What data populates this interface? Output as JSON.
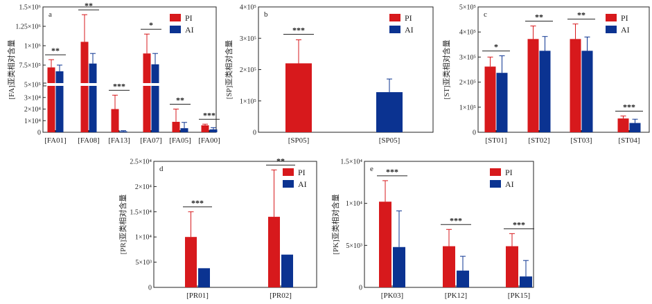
{
  "colors": {
    "pi": "#d7191c",
    "ai": "#0b3391"
  },
  "legend": {
    "pi": "PI",
    "ai": "AI"
  },
  "chart_data": [
    {
      "id": "a",
      "type": "bar",
      "panel_label": "a",
      "ylabel": "[FA]亚类相对含量",
      "y_broken_axis": true,
      "y_lower_range": [
        0,
        40000
      ],
      "y_upper_range": [
        500000,
        1500000
      ],
      "y_ticks": [
        "0",
        "1×10⁴",
        "2×10⁴",
        "3×10⁴",
        "5×10⁵",
        "7.5×10⁵",
        "1×10⁶",
        "1.25×10⁶",
        "1.5×10⁶"
      ],
      "categories": [
        "[FA01]",
        "[FA08]",
        "[FA13]",
        "[FA07]",
        "[FA05]",
        "[FA00]"
      ],
      "series": [
        {
          "name": "PI",
          "values": [
            720000,
            1050000,
            20000,
            900000,
            9000,
            6000
          ],
          "errors": [
            100000,
            350000,
            12000,
            250000,
            11000,
            1000
          ]
        },
        {
          "name": "AI",
          "values": [
            670000,
            770000,
            800,
            760000,
            3500,
            2500
          ],
          "errors": [
            80000,
            130000,
            600,
            140000,
            5000,
            1500
          ]
        }
      ],
      "significance": [
        "**",
        "**",
        "***",
        "*",
        "**",
        "***"
      ]
    },
    {
      "id": "b",
      "type": "bar",
      "panel_label": "b",
      "ylabel": "[SP]亚类相对含量",
      "ylim": [
        0,
        400000
      ],
      "y_ticks": [
        "0",
        "1×10⁵",
        "2×10⁵",
        "3×10⁵",
        "4×10⁵"
      ],
      "categories": [
        "[SP05]",
        "[SP05]"
      ],
      "series": [
        {
          "name": "PI",
          "values": [
            220000,
            null
          ],
          "errors": [
            75000,
            null
          ]
        },
        {
          "name": "AI",
          "values": [
            null,
            128000
          ],
          "errors": [
            null,
            42000
          ]
        }
      ],
      "significance": [
        "***"
      ]
    },
    {
      "id": "c",
      "type": "bar",
      "panel_label": "c",
      "ylabel": "[ST]亚类相对含量",
      "ylim": [
        0,
        500000
      ],
      "y_ticks": [
        "0",
        "1×10⁵",
        "2×10⁵",
        "3×10⁵",
        "4×10⁵",
        "5×10⁵"
      ],
      "categories": [
        "[ST01]",
        "[ST02]",
        "[ST03]",
        "[ST04]"
      ],
      "series": [
        {
          "name": "PI",
          "values": [
            262000,
            372000,
            372000,
            55000
          ],
          "errors": [
            38000,
            52000,
            60000,
            10000
          ]
        },
        {
          "name": "AI",
          "values": [
            237000,
            325000,
            325000,
            37000
          ],
          "errors": [
            68000,
            57000,
            55000,
            15000
          ]
        }
      ],
      "significance": [
        "*",
        "**",
        "**",
        "***"
      ]
    },
    {
      "id": "d",
      "type": "bar",
      "panel_label": "d",
      "ylabel": "[PR]亚类相对含量",
      "ylim": [
        0,
        25000
      ],
      "y_ticks": [
        "0",
        "5×10³",
        "1×10⁴",
        "1.5×10⁴",
        "2×10⁴",
        "2.5×10⁴"
      ],
      "categories": [
        "[PR01]",
        "[PR02]"
      ],
      "series": [
        {
          "name": "PI",
          "values": [
            10000,
            14000
          ],
          "errors": [
            5000,
            9300
          ]
        },
        {
          "name": "AI",
          "values": [
            3800,
            6500
          ],
          "errors": [
            0,
            0
          ]
        }
      ],
      "significance": [
        "***",
        "**"
      ]
    },
    {
      "id": "e",
      "type": "bar",
      "panel_label": "e",
      "ylabel": "[PK]亚类相对含量",
      "ylim": [
        0,
        15000
      ],
      "y_ticks": [
        "0",
        "5×10³",
        "1×10⁴",
        "1.5×10⁴"
      ],
      "categories": [
        "[PK03]",
        "[PK12]",
        "[PK15]"
      ],
      "series": [
        {
          "name": "PI",
          "values": [
            10200,
            4900,
            4900
          ],
          "errors": [
            2500,
            2000,
            1500
          ]
        },
        {
          "name": "AI",
          "values": [
            4800,
            2000,
            1300
          ],
          "errors": [
            4300,
            1700,
            1900
          ]
        }
      ],
      "significance": [
        "***",
        "***",
        "***"
      ]
    }
  ]
}
